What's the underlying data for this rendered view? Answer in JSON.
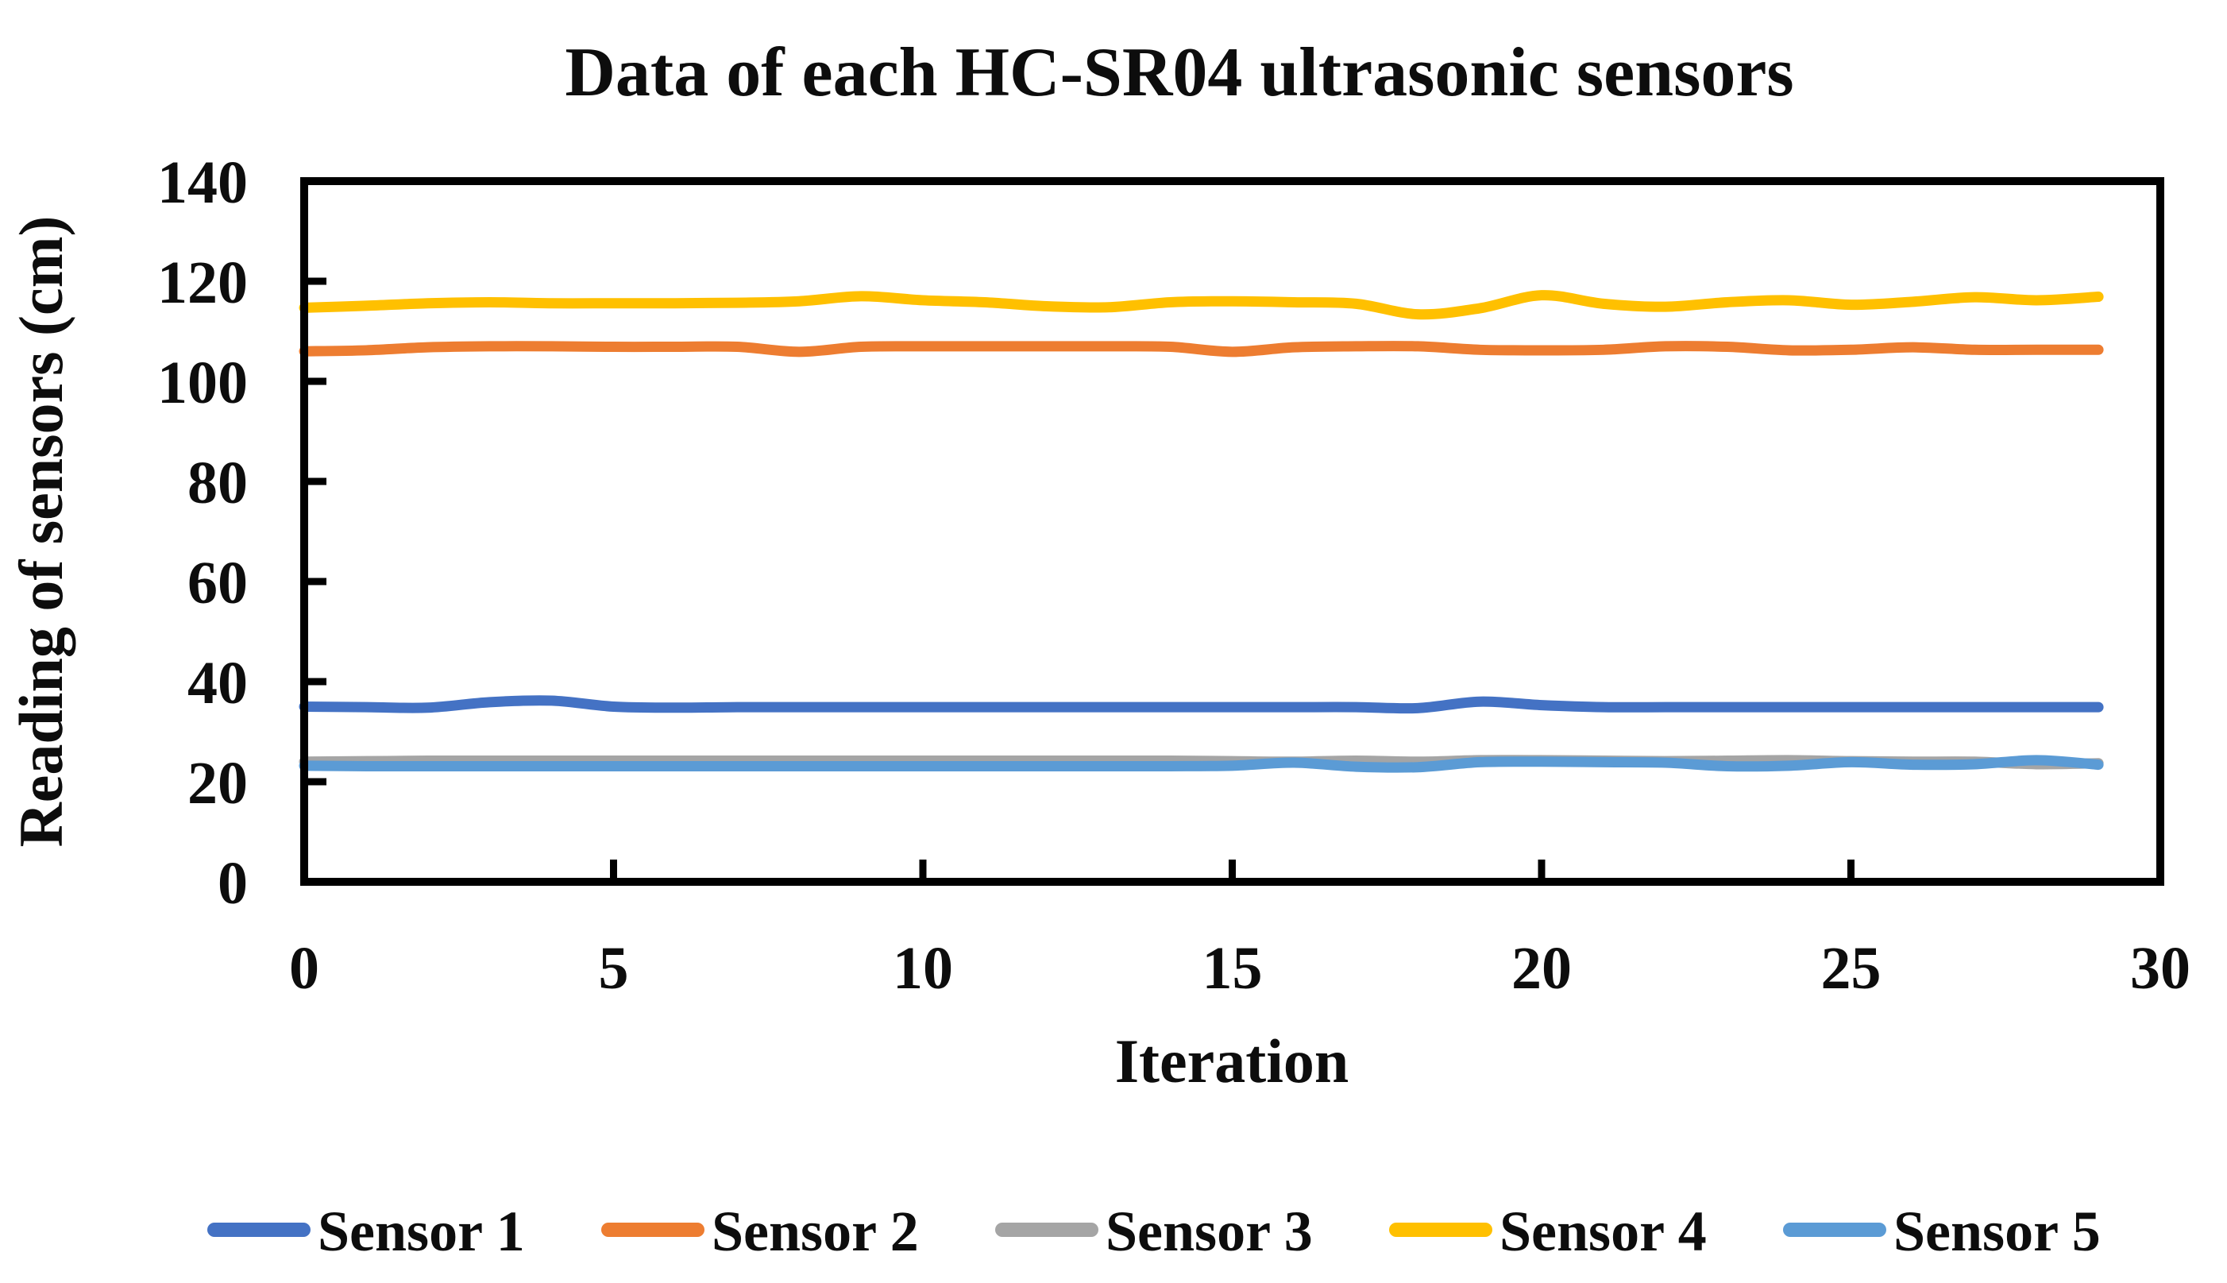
{
  "title": "Data of each HC-SR04 ultrasonic sensors",
  "chart_data": {
    "type": "line",
    "title": "Data of each HC-SR04 ultrasonic sensors",
    "xlabel": "Iteration",
    "ylabel": "Reading of sensors (cm)",
    "xlim": [
      0,
      30
    ],
    "ylim": [
      0,
      140
    ],
    "x_ticks": [
      0,
      5,
      10,
      15,
      20,
      25,
      30
    ],
    "y_ticks": [
      0,
      20,
      40,
      60,
      80,
      100,
      120,
      140
    ],
    "grid": false,
    "legend_position": "bottom",
    "axis_color": "#000000",
    "x": [
      0,
      1,
      2,
      3,
      4,
      5,
      6,
      7,
      8,
      9,
      10,
      11,
      12,
      13,
      14,
      15,
      16,
      17,
      18,
      19,
      20,
      21,
      22,
      23,
      24,
      25,
      26,
      27,
      28,
      29
    ],
    "series": [
      {
        "name": "Sensor 1",
        "color": "#4472C4",
        "values": [
          35.0,
          34.9,
          34.8,
          35.9,
          36.2,
          35.0,
          34.8,
          34.9,
          34.9,
          34.9,
          34.9,
          34.9,
          34.9,
          34.9,
          34.9,
          34.9,
          34.9,
          34.9,
          34.7,
          36.0,
          35.3,
          34.9,
          34.9,
          34.9,
          34.9,
          34.9,
          34.9,
          34.9,
          34.9,
          34.9
        ]
      },
      {
        "name": "Sensor 2",
        "color": "#ED7D31",
        "values": [
          106.0,
          106.2,
          106.8,
          107.0,
          107.0,
          106.9,
          106.9,
          106.9,
          105.9,
          106.9,
          107.0,
          107.0,
          107.0,
          107.0,
          106.9,
          105.9,
          106.8,
          107.0,
          107.0,
          106.3,
          106.2,
          106.3,
          107.0,
          106.9,
          106.2,
          106.3,
          106.8,
          106.3,
          106.3,
          106.3
        ]
      },
      {
        "name": "Sensor 3",
        "color": "#A5A5A5",
        "values": [
          24.0,
          24.1,
          24.2,
          24.2,
          24.2,
          24.2,
          24.2,
          24.2,
          24.2,
          24.2,
          24.2,
          24.2,
          24.2,
          24.2,
          24.2,
          24.1,
          24.0,
          24.2,
          24.0,
          24.3,
          24.3,
          24.2,
          24.1,
          24.2,
          24.3,
          24.1,
          24.0,
          24.0,
          23.5,
          23.7
        ]
      },
      {
        "name": "Sensor 4",
        "color": "#FFC000",
        "values": [
          114.7,
          115.1,
          115.6,
          115.8,
          115.6,
          115.6,
          115.6,
          115.7,
          116.0,
          117.0,
          116.2,
          115.8,
          115.0,
          114.8,
          115.8,
          116.0,
          115.8,
          115.5,
          113.4,
          114.6,
          117.2,
          115.5,
          114.9,
          115.8,
          116.2,
          115.3,
          115.9,
          116.8,
          116.2,
          116.9
        ]
      },
      {
        "name": "Sensor 5",
        "color": "#5B9BD5",
        "values": [
          23.2,
          23.1,
          23.1,
          23.1,
          23.1,
          23.1,
          23.1,
          23.1,
          23.1,
          23.1,
          23.1,
          23.1,
          23.1,
          23.1,
          23.1,
          23.2,
          23.8,
          23.0,
          22.9,
          23.9,
          24.0,
          23.9,
          23.8,
          23.1,
          23.2,
          23.9,
          23.4,
          23.5,
          24.3,
          23.4
        ]
      }
    ]
  }
}
